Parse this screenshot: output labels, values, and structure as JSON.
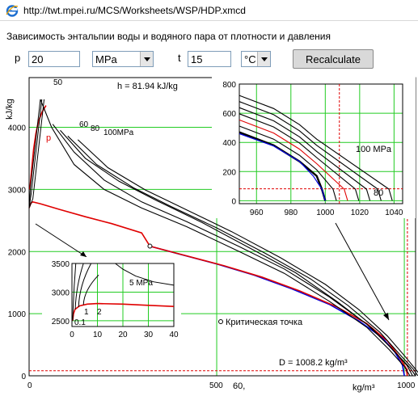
{
  "address_bar": {
    "url": "http://twt.mpei.ru/MCS/Worksheets/WSP/HDP.xmcd",
    "icon": "ie-page-icon"
  },
  "heading": "Зависимость энтальпии воды и водяного пара от плотности и давления",
  "form": {
    "pressure_label": "p",
    "pressure_value": "20",
    "pressure_unit": "MPa",
    "temperature_label": "t",
    "temperature_value": "15",
    "temperature_unit": "°C",
    "recalculate_label": "Recalculate"
  },
  "chart_data": [
    {
      "type": "line",
      "id": "main",
      "title": "",
      "xlabel": "kg/m³",
      "ylabel": "kJ/kg",
      "xlim": [
        0,
        1030
      ],
      "ylim": [
        0,
        4800
      ],
      "xticks": [
        0,
        500,
        1000
      ],
      "yticks": [
        0,
        1000,
        2000,
        3000,
        4000
      ],
      "grid": true,
      "annotations": {
        "enthalpy": "h = 81.94 kJ/kg",
        "density": "D = 1008.2 kg/m³",
        "critical_point": "Критическая точка",
        "pressure_series": "p",
        "bottom_value": "60,"
      },
      "marker": {
        "x": 1008.2,
        "y": 81.94
      },
      "critical_point": {
        "x": 322,
        "y": 2087
      },
      "isobar_labels": [
        "50",
        "60",
        "80",
        "100MPa"
      ],
      "series": [
        {
          "name": "p",
          "color": "#e00000",
          "points": [
            [
              2,
              3000
            ],
            [
              5,
              3200
            ],
            [
              8,
              3400
            ],
            [
              12,
              3650
            ],
            [
              18,
              3900
            ],
            [
              25,
              4100
            ],
            [
              35,
              4250
            ],
            [
              45,
              4350
            ]
          ]
        },
        {
          "name": "",
          "color": "#e00000",
          "points": [
            [
              0,
              2700
            ],
            [
              5,
              2780
            ],
            [
              10,
              2800
            ],
            [
              30,
              2770
            ],
            [
              80,
              2680
            ],
            [
              150,
              2560
            ],
            [
              220,
              2450
            ],
            [
              300,
              2300
            ],
            [
              322,
              2087
            ]
          ]
        },
        {
          "name": "",
          "color": "#0000e0",
          "points": [
            [
              322,
              2087
            ],
            [
              400,
              1960
            ],
            [
              500,
              1800
            ],
            [
              600,
              1620
            ],
            [
              700,
              1400
            ],
            [
              800,
              1150
            ],
            [
              880,
              880
            ],
            [
              940,
              620
            ],
            [
              975,
              380
            ],
            [
              995,
              170
            ],
            [
              1000,
              0
            ]
          ]
        },
        {
          "name": "",
          "color": "#e00000",
          "points": [
            [
              322,
              2087
            ],
            [
              420,
              1930
            ],
            [
              520,
              1770
            ],
            [
              620,
              1590
            ],
            [
              720,
              1370
            ],
            [
              820,
              1110
            ],
            [
              900,
              840
            ],
            [
              955,
              560
            ],
            [
              985,
              320
            ],
            [
              1005,
              120
            ],
            [
              1008,
              0
            ]
          ]
        },
        {
          "name": "50",
          "color": "#000000",
          "points": [
            [
              30,
              4450
            ],
            [
              60,
              4000
            ],
            [
              120,
              3400
            ],
            [
              200,
              3000
            ],
            [
              300,
              2700
            ],
            [
              420,
              2400
            ],
            [
              560,
              2000
            ],
            [
              680,
              1650
            ],
            [
              800,
              1200
            ],
            [
              900,
              780
            ],
            [
              960,
              420
            ],
            [
              1000,
              150
            ],
            [
              1015,
              0
            ]
          ]
        },
        {
          "name": "60",
          "color": "#000000",
          "points": [
            [
              63,
              4050
            ],
            [
              120,
              3600
            ],
            [
              200,
              3150
            ],
            [
              300,
              2800
            ],
            [
              420,
              2480
            ],
            [
              560,
              2080
            ],
            [
              680,
              1720
            ],
            [
              800,
              1270
            ],
            [
              900,
              830
            ],
            [
              965,
              450
            ],
            [
              1008,
              160
            ],
            [
              1022,
              0
            ]
          ]
        },
        {
          "name": "80",
          "color": "#000000",
          "points": [
            [
              83,
              3950
            ],
            [
              150,
              3500
            ],
            [
              240,
              3130
            ],
            [
              340,
              2820
            ],
            [
              460,
              2470
            ],
            [
              590,
              2050
            ],
            [
              710,
              1660
            ],
            [
              820,
              1200
            ],
            [
              915,
              760
            ],
            [
              975,
              380
            ],
            [
              1015,
              130
            ],
            [
              1030,
              0
            ]
          ]
        },
        {
          "name": "100MPa",
          "color": "#000000",
          "points": [
            [
              103,
              3860
            ],
            [
              180,
              3400
            ],
            [
              280,
              3020
            ],
            [
              380,
              2720
            ],
            [
              500,
              2380
            ],
            [
              630,
              1970
            ],
            [
              750,
              1560
            ],
            [
              850,
              1130
            ],
            [
              935,
              700
            ],
            [
              990,
              330
            ],
            [
              1025,
              100
            ],
            [
              1036,
              0
            ]
          ]
        },
        {
          "name": "",
          "color": "#000000",
          "points": [
            [
              130,
              3800
            ],
            [
              210,
              3350
            ],
            [
              310,
              2990
            ],
            [
              420,
              2670
            ],
            [
              540,
              2320
            ],
            [
              670,
              1900
            ],
            [
              790,
              1470
            ],
            [
              880,
              1060
            ],
            [
              955,
              640
            ],
            [
              1005,
              290
            ],
            [
              1036,
              60
            ],
            [
              1043,
              0
            ]
          ]
        }
      ]
    },
    {
      "type": "line",
      "id": "inset-top-right",
      "xlim": [
        950,
        1045
      ],
      "ylim": [
        -20,
        800
      ],
      "xticks": [
        960,
        980,
        1000,
        1020,
        1040
      ],
      "yticks": [
        0,
        200,
        400,
        600,
        800
      ],
      "grid": true,
      "marker": {
        "x": 1008.2,
        "y": 81.94
      },
      "labels": {
        "top": "100 MPa",
        "bottom": "80"
      }
    },
    {
      "type": "line",
      "id": "inset-bottom-left",
      "xlim": [
        0,
        40
      ],
      "ylim": [
        2400,
        3500
      ],
      "xticks": [
        0,
        10,
        20,
        30,
        40
      ],
      "yticks": [
        2500,
        3000,
        3500
      ],
      "grid": true,
      "labels": {
        "pressure": "5 MPa",
        "l01": "0.1",
        "l1": "1",
        "l2": "2"
      }
    }
  ]
}
